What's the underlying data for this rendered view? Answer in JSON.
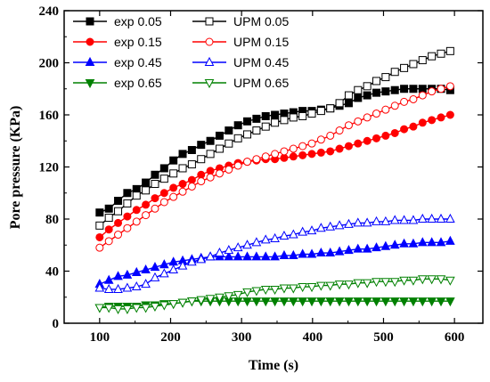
{
  "chart_data": {
    "type": "line",
    "title": "",
    "xlabel": "Time (s)",
    "ylabel": "Pore pressure (KPa)",
    "xlim": [
      50,
      640
    ],
    "ylim": [
      0,
      240
    ],
    "xticks": [
      100,
      200,
      300,
      400,
      500,
      600
    ],
    "yticks": [
      0,
      40,
      80,
      120,
      160,
      200,
      240
    ],
    "grid": false,
    "legend_position": "top-left",
    "x": [
      100,
      113,
      126,
      139,
      152,
      165,
      178,
      191,
      204,
      217,
      230,
      243,
      256,
      269,
      282,
      295,
      308,
      321,
      334,
      347,
      360,
      373,
      386,
      399,
      412,
      425,
      438,
      451,
      464,
      477,
      490,
      503,
      516,
      529,
      542,
      555,
      568,
      581,
      594
    ],
    "series": [
      {
        "name": "exp 0.05",
        "marker": "filled-square",
        "color": "#000000",
        "values": [
          85,
          88,
          94,
          100,
          103,
          108,
          114,
          119,
          125,
          130,
          133,
          137,
          140,
          144,
          148,
          152,
          155,
          157,
          159,
          160,
          161,
          162,
          163,
          163,
          164,
          165,
          167,
          169,
          173,
          175,
          177,
          178,
          179,
          180,
          180,
          180,
          180,
          180,
          179
        ]
      },
      {
        "name": "UPM 0.05",
        "marker": "open-square",
        "color": "#000000",
        "values": [
          75,
          81,
          86,
          92,
          98,
          102,
          107,
          111,
          115,
          119,
          122,
          126,
          130,
          134,
          138,
          142,
          145,
          148,
          151,
          154,
          156,
          158,
          159,
          161,
          163,
          165,
          169,
          175,
          179,
          182,
          186,
          189,
          193,
          196,
          199,
          202,
          205,
          207,
          209
        ]
      },
      {
        "name": "exp 0.15",
        "marker": "filled-circle",
        "color": "#ff0000",
        "values": [
          66,
          72,
          77,
          82,
          87,
          91,
          96,
          100,
          104,
          107,
          110,
          114,
          117,
          119,
          121,
          123,
          124,
          125,
          126,
          126,
          127,
          128,
          129,
          130,
          131,
          132,
          134,
          136,
          138,
          140,
          142,
          144,
          146,
          149,
          151,
          154,
          156,
          158,
          160
        ]
      },
      {
        "name": "UPM 0.15",
        "marker": "open-circle",
        "color": "#ff0000",
        "values": [
          58,
          63,
          68,
          73,
          78,
          83,
          88,
          93,
          97,
          101,
          105,
          109,
          112,
          115,
          118,
          121,
          124,
          126,
          128,
          130,
          132,
          134,
          136,
          138,
          141,
          144,
          148,
          152,
          155,
          158,
          161,
          164,
          167,
          170,
          172,
          175,
          178,
          180,
          182
        ]
      },
      {
        "name": "exp 0.45",
        "marker": "filled-triangle-up",
        "color": "#0000ff",
        "values": [
          30,
          33,
          36,
          37,
          39,
          41,
          43,
          45,
          47,
          48,
          49,
          50,
          51,
          51,
          51,
          51,
          51,
          51,
          51,
          51,
          52,
          52,
          53,
          53,
          54,
          54,
          55,
          56,
          57,
          57,
          58,
          59,
          60,
          61,
          61,
          62,
          62,
          62,
          63
        ]
      },
      {
        "name": "UPM 0.45",
        "marker": "open-triangle-up",
        "color": "#0000ff",
        "values": [
          27,
          26,
          26,
          27,
          28,
          30,
          35,
          38,
          41,
          44,
          47,
          49,
          51,
          54,
          56,
          58,
          60,
          62,
          64,
          65,
          67,
          68,
          70,
          71,
          73,
          74,
          75,
          76,
          77,
          77,
          78,
          78,
          79,
          79,
          79,
          80,
          80,
          80,
          80
        ]
      },
      {
        "name": "exp 0.65",
        "marker": "filled-triangle-down",
        "color": "#008000",
        "values": [
          12,
          13,
          13,
          13,
          13,
          14,
          14,
          15,
          15,
          16,
          17,
          17,
          17,
          17,
          17,
          17,
          17,
          17,
          17,
          17,
          17,
          17,
          17,
          17,
          17,
          17,
          17,
          17,
          17,
          17,
          17,
          17,
          17,
          17,
          17,
          17,
          17,
          17,
          17
        ]
      },
      {
        "name": "UPM 0.65",
        "marker": "open-triangle-down",
        "color": "#008000",
        "values": [
          12,
          12,
          11,
          11,
          12,
          12,
          13,
          14,
          15,
          16,
          17,
          18,
          19,
          20,
          21,
          22,
          24,
          25,
          26,
          26,
          27,
          27,
          28,
          28,
          29,
          29,
          30,
          30,
          31,
          31,
          32,
          32,
          32,
          33,
          33,
          34,
          34,
          34,
          33
        ]
      }
    ]
  }
}
